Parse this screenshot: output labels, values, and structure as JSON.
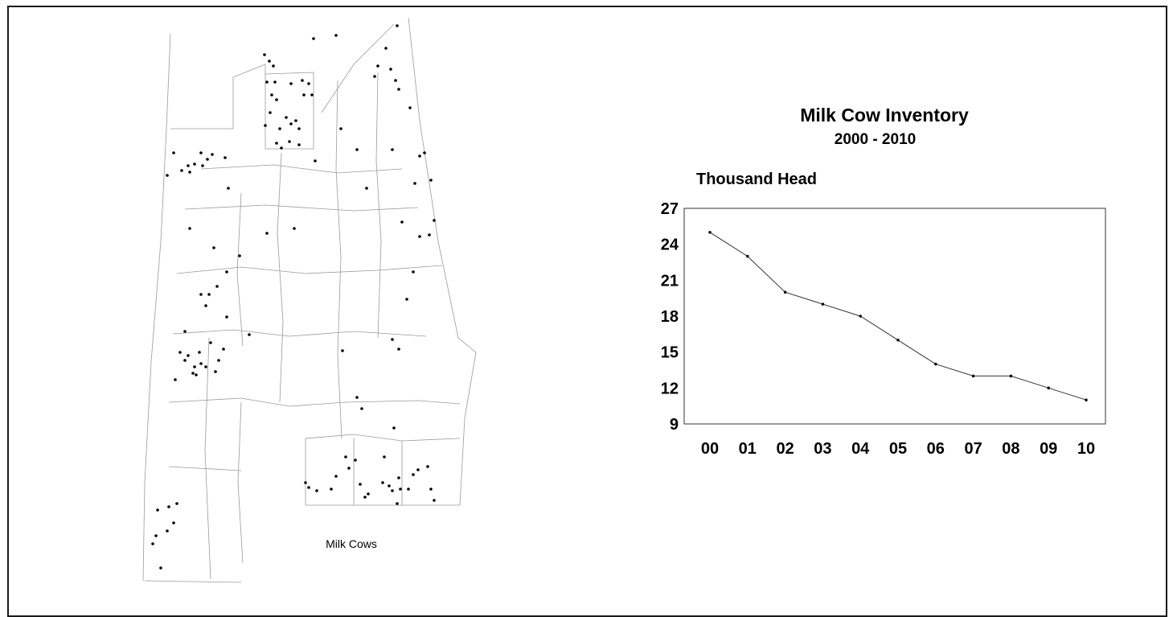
{
  "map": {
    "caption": "Milk Cows"
  },
  "chart_data": {
    "type": "line",
    "title": "Milk Cow Inventory",
    "subtitle": "2000 - 2010",
    "ylabel": "Thousand Head",
    "xlabel": "",
    "categories": [
      "00",
      "01",
      "02",
      "03",
      "04",
      "05",
      "06",
      "07",
      "08",
      "09",
      "10"
    ],
    "values": [
      25,
      23,
      20,
      19,
      18,
      16,
      14,
      13,
      13,
      12,
      11
    ],
    "yticks": [
      9,
      12,
      15,
      18,
      21,
      24,
      27
    ],
    "ylim": [
      9,
      27
    ],
    "grid": false,
    "legend": "none",
    "line_color": "#333333"
  }
}
